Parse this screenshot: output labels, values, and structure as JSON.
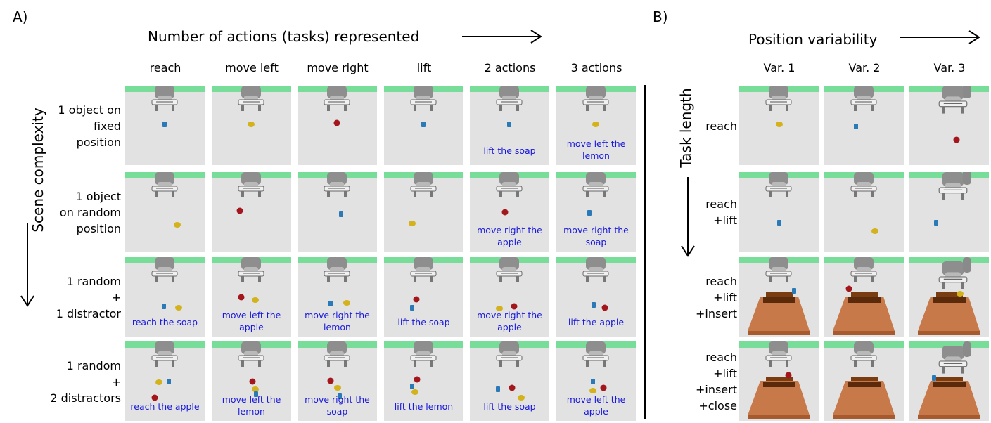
{
  "panel_a": {
    "label": "A)",
    "heading": "Number of actions (tasks) represented",
    "side_label": "Scene complexity",
    "columns": [
      "reach",
      "move left",
      "move right",
      "lift",
      "2 actions",
      "3 actions"
    ],
    "rows": [
      {
        "label": [
          "1 object on",
          "fixed",
          "position"
        ],
        "captions": [
          "",
          "",
          "",
          "",
          "lift the soap",
          "move left the lemon"
        ]
      },
      {
        "label": [
          "1 object",
          "on random",
          "position"
        ],
        "captions": [
          "",
          "",
          "",
          "",
          "move right the apple",
          "move right the soap"
        ]
      },
      {
        "label": [
          "1 random",
          "+",
          "1 distractor"
        ],
        "captions": [
          "reach the soap",
          "move left the apple",
          "move right the lemon",
          "lift the soap",
          "move right the apple",
          "lift the apple"
        ]
      },
      {
        "label": [
          "1 random",
          "+",
          "2 distractors"
        ],
        "captions": [
          "reach the apple",
          "move left the lemon",
          "move right the soap",
          "lift the lemon",
          "lift the soap",
          "move left the apple"
        ]
      }
    ]
  },
  "panel_b": {
    "label": "B)",
    "heading": "Position variability",
    "side_label": "Task length",
    "columns": [
      "Var. 1",
      "Var. 2",
      "Var. 3"
    ],
    "rows": [
      {
        "label": [
          "reach"
        ]
      },
      {
        "label": [
          "reach",
          "+lift"
        ]
      },
      {
        "label": [
          "reach",
          "+lift",
          "+insert"
        ]
      },
      {
        "label": [
          "reach",
          "+lift",
          "+insert",
          "+close"
        ]
      }
    ]
  },
  "colors": {
    "soap": "#2a7ab8",
    "lemon": "#d4b21c",
    "apple": "#a3161c",
    "table_strip": "#77dd99",
    "caption": "#1a1adc",
    "box": "#c8794a"
  }
}
